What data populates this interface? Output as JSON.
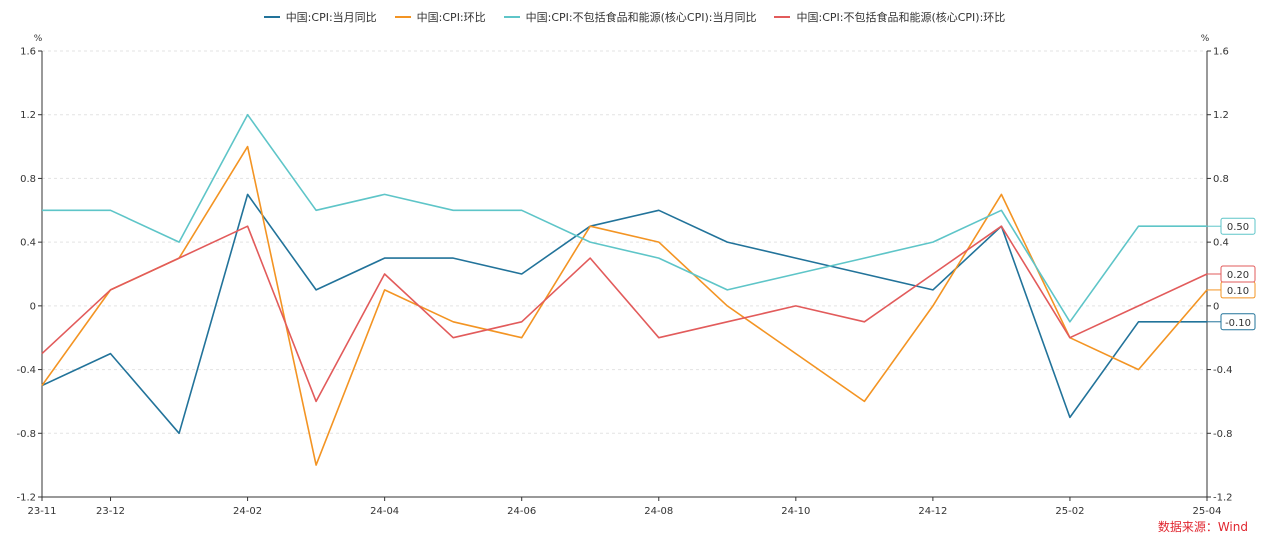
{
  "chart_data": {
    "type": "line",
    "title": "",
    "xlabel": "",
    "ylabel": "%",
    "ylabel_right": "%",
    "ylim": [
      -1.2,
      1.6
    ],
    "yticks": [
      -1.2,
      -0.8,
      -0.4,
      0,
      0.4,
      0.8,
      1.2,
      1.6
    ],
    "ytick_labels": [
      "-1.2",
      "-0.8",
      "-0.4",
      "0",
      "0.4",
      "0.8",
      "1.2",
      "1.6"
    ],
    "categories": [
      "23-11",
      "23-12",
      "24-01",
      "24-02",
      "24-03",
      "24-04",
      "24-05",
      "24-06",
      "24-07",
      "24-08",
      "24-09",
      "24-10",
      "24-11",
      "24-12",
      "25-01",
      "25-02",
      "25-03",
      "25-04"
    ],
    "xtick_labels": [
      {
        "index": 0,
        "label": "23-11"
      },
      {
        "index": 1,
        "label": "23-12"
      },
      {
        "index": 3,
        "label": "24-02"
      },
      {
        "index": 5,
        "label": "24-04"
      },
      {
        "index": 7,
        "label": "24-06"
      },
      {
        "index": 9,
        "label": "24-08"
      },
      {
        "index": 11,
        "label": "24-10"
      },
      {
        "index": 13,
        "label": "24-12"
      },
      {
        "index": 15,
        "label": "25-02"
      },
      {
        "index": 17,
        "label": "25-04"
      }
    ],
    "series": [
      {
        "name": "中国:CPI:当月同比",
        "color": "#22739a",
        "values": [
          -0.5,
          -0.3,
          -0.8,
          0.7,
          0.1,
          0.3,
          0.3,
          0.2,
          0.5,
          0.6,
          0.4,
          0.3,
          0.2,
          0.1,
          0.5,
          -0.7,
          -0.1,
          -0.1
        ],
        "end_label": "-0.10"
      },
      {
        "name": "中国:CPI:环比",
        "color": "#f39423",
        "values": [
          -0.5,
          0.1,
          0.3,
          1.0,
          -1.0,
          0.1,
          -0.1,
          -0.2,
          0.5,
          0.4,
          0.0,
          -0.3,
          -0.6,
          0.0,
          0.7,
          -0.2,
          -0.4,
          0.1
        ],
        "end_label": "0.10"
      },
      {
        "name": "中国:CPI:不包括食品和能源(核心CPI):当月同比",
        "color": "#5ec5c8",
        "values": [
          0.6,
          0.6,
          0.4,
          1.2,
          0.6,
          0.7,
          0.6,
          0.6,
          0.4,
          0.3,
          0.1,
          0.2,
          0.3,
          0.4,
          0.6,
          -0.1,
          0.5,
          0.5
        ],
        "end_label": "0.50"
      },
      {
        "name": "中国:CPI:不包括食品和能源(核心CPI):环比",
        "color": "#e25b5b",
        "values": [
          -0.3,
          0.1,
          0.3,
          0.5,
          -0.6,
          0.2,
          -0.2,
          -0.1,
          0.3,
          -0.2,
          -0.1,
          0.0,
          -0.1,
          0.2,
          0.5,
          -0.2,
          0.0,
          0.2
        ],
        "end_label": "0.20"
      }
    ],
    "legend_position": "top-center",
    "grid": true
  },
  "source_text": "数据来源：Wind"
}
